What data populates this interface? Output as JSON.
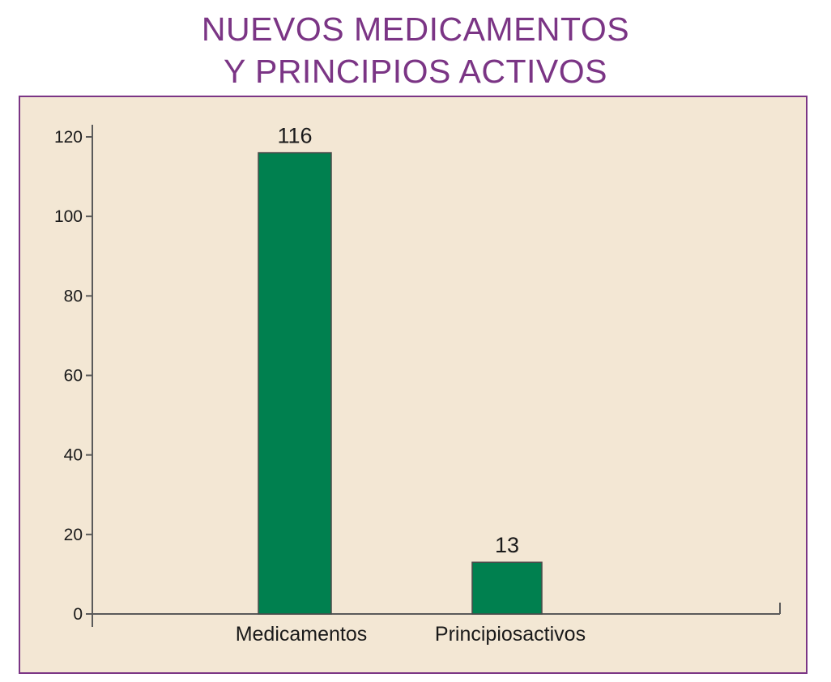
{
  "title_lines": [
    "NUEVOS MEDICAMENTOS",
    "Y PRINCIPIOS ACTIVOS"
  ],
  "colors": {
    "title": "#7b3585",
    "panel_background": "#f3e7d4",
    "panel_border": "#7b3585",
    "bar_fill": "#00804f",
    "axis": "#5a5a5a"
  },
  "chart_data": {
    "type": "bar",
    "title": "NUEVOS MEDICAMENTOS Y PRINCIPIOS ACTIVOS",
    "categories": [
      "Medicamentos",
      "Principiosactivos"
    ],
    "values": [
      116,
      13
    ],
    "data_labels": [
      "116",
      "13"
    ],
    "xlabel": "",
    "ylabel": "",
    "ylim": [
      0,
      120
    ],
    "yticks": [
      0,
      20,
      40,
      60,
      80,
      100,
      120
    ],
    "grid": false,
    "legend": false
  }
}
